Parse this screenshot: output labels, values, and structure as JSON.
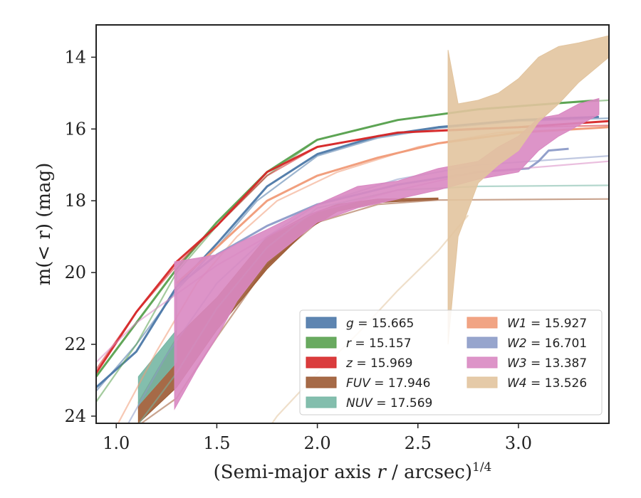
{
  "chart_data": {
    "type": "line",
    "title": "",
    "xlabel_main": "(Semi-major axis ",
    "xlabel_var": "r",
    "xlabel_unit": " / arcsec)",
    "xlabel_sup": "1/4",
    "ylabel_main": "m(< r) (mag)",
    "xlim": [
      0.9,
      3.45
    ],
    "ylim": [
      24.2,
      13.1
    ],
    "xticks": [
      "1.0",
      "1.5",
      "2.0",
      "2.5",
      "3.0"
    ],
    "yticks": [
      "14",
      "16",
      "18",
      "20",
      "22",
      "24"
    ],
    "grid": false,
    "legend_position": "lower-right",
    "series": [
      {
        "key": "g",
        "name": "g = 15.665",
        "color": "#4c78a8",
        "kind": "line",
        "model": [
          [
            0.9,
            23.3
          ],
          [
            1.1,
            22.0
          ],
          [
            1.3,
            20.5
          ],
          [
            1.5,
            19.3
          ],
          [
            1.7,
            18.0
          ],
          [
            2.0,
            16.75
          ],
          [
            2.3,
            16.25
          ],
          [
            2.6,
            15.98
          ],
          [
            3.0,
            15.78
          ],
          [
            3.45,
            15.7
          ]
        ],
        "data": [
          [
            0.9,
            23.2
          ],
          [
            1.1,
            22.2
          ],
          [
            1.3,
            20.4
          ],
          [
            1.5,
            19.2
          ],
          [
            1.75,
            17.6
          ],
          [
            2.0,
            16.7
          ],
          [
            2.3,
            16.2
          ],
          [
            2.6,
            15.95
          ],
          [
            3.0,
            15.75
          ],
          [
            3.4,
            15.66
          ]
        ]
      },
      {
        "key": "r",
        "name": "r = 15.157",
        "color": "#59a14f",
        "kind": "line",
        "model": [
          [
            0.9,
            23.6
          ],
          [
            1.1,
            22.0
          ],
          [
            1.3,
            20.0
          ],
          [
            1.5,
            18.7
          ],
          [
            1.75,
            17.3
          ],
          [
            2.0,
            16.3
          ],
          [
            2.4,
            15.75
          ],
          [
            2.8,
            15.45
          ],
          [
            3.2,
            15.28
          ],
          [
            3.45,
            15.2
          ]
        ],
        "data": [
          [
            0.9,
            22.9
          ],
          [
            1.1,
            21.4
          ],
          [
            1.3,
            19.9
          ],
          [
            1.5,
            18.6
          ],
          [
            1.75,
            17.2
          ],
          [
            2.0,
            16.3
          ],
          [
            2.4,
            15.75
          ],
          [
            2.8,
            15.45
          ],
          [
            3.2,
            15.28
          ],
          [
            3.4,
            15.2
          ]
        ]
      },
      {
        "key": "z",
        "name": "z = 15.969",
        "color": "#d62728",
        "kind": "line",
        "model": [
          [
            0.9,
            22.7
          ],
          [
            1.1,
            21.1
          ],
          [
            1.3,
            19.8
          ],
          [
            1.5,
            18.7
          ],
          [
            1.75,
            17.3
          ],
          [
            2.0,
            16.5
          ],
          [
            2.4,
            16.1
          ],
          [
            2.8,
            15.98
          ],
          [
            3.45,
            15.9
          ]
        ],
        "data": [
          [
            0.9,
            22.8
          ],
          [
            1.1,
            21.1
          ],
          [
            1.3,
            19.7
          ],
          [
            1.5,
            18.7
          ],
          [
            1.75,
            17.2
          ],
          [
            2.0,
            16.5
          ],
          [
            2.4,
            16.1
          ],
          [
            2.8,
            16.0
          ],
          [
            3.0,
            15.95
          ],
          [
            3.45,
            15.78
          ]
        ]
      },
      {
        "key": "fuv",
        "name": "FUV = 17.946",
        "color": "#9c5a33",
        "kind": "band",
        "model": [
          [
            1.1,
            24.3
          ],
          [
            1.3,
            23.5
          ],
          [
            1.5,
            21.8
          ],
          [
            1.75,
            19.8
          ],
          [
            2.0,
            18.6
          ],
          [
            2.3,
            18.1
          ],
          [
            2.6,
            17.98
          ],
          [
            3.45,
            17.95
          ]
        ],
        "band": [
          [
            1.11,
            24.2,
            23.6
          ],
          [
            1.3,
            23.2,
            21.8
          ],
          [
            1.5,
            21.6,
            20.7
          ],
          [
            1.75,
            19.9,
            19.0
          ],
          [
            1.95,
            18.8,
            18.4
          ],
          [
            2.1,
            18.3,
            18.1
          ],
          [
            2.3,
            18.05,
            17.95
          ],
          [
            2.6,
            17.97,
            17.92
          ]
        ]
      },
      {
        "key": "nuv",
        "name": "NUV = 17.569",
        "color": "#76b7a4",
        "kind": "band",
        "model": [
          [
            1.1,
            24.3
          ],
          [
            1.3,
            22.8
          ],
          [
            1.5,
            21.0
          ],
          [
            1.75,
            19.3
          ],
          [
            2.0,
            18.2
          ],
          [
            2.4,
            17.7
          ],
          [
            2.8,
            17.6
          ],
          [
            3.45,
            17.57
          ]
        ],
        "band": [
          [
            1.11,
            23.7,
            22.9
          ],
          [
            1.3,
            22.5,
            21.6
          ],
          [
            1.3,
            20.6,
            20.0
          ]
        ]
      },
      {
        "key": "w1",
        "name": "W1 = 15.927",
        "color": "#f09a77",
        "kind": "line",
        "model": [
          [
            1.0,
            24.3
          ],
          [
            1.2,
            22.2
          ],
          [
            1.4,
            20.3
          ],
          [
            1.6,
            19.0
          ],
          [
            1.8,
            18.0
          ],
          [
            2.1,
            17.2
          ],
          [
            2.5,
            16.5
          ],
          [
            2.9,
            16.1
          ],
          [
            3.45,
            15.95
          ]
        ],
        "data": [
          [
            1.3,
            20.3
          ],
          [
            1.5,
            19.3
          ],
          [
            1.75,
            18.0
          ],
          [
            2.0,
            17.3
          ],
          [
            2.3,
            16.8
          ],
          [
            2.6,
            16.4
          ],
          [
            3.0,
            16.1
          ],
          [
            3.45,
            15.95
          ]
        ]
      },
      {
        "key": "w2",
        "name": "W2 = 16.701",
        "color": "#8c9bc8",
        "kind": "line",
        "model": [
          [
            1.05,
            24.3
          ],
          [
            1.25,
            22.3
          ],
          [
            1.5,
            20.3
          ],
          [
            1.75,
            19.0
          ],
          [
            2.0,
            18.1
          ],
          [
            2.4,
            17.4
          ],
          [
            2.8,
            17.0
          ],
          [
            3.45,
            16.75
          ]
        ],
        "data": [
          [
            1.3,
            20.4
          ],
          [
            1.5,
            19.5
          ],
          [
            1.75,
            18.7
          ],
          [
            2.0,
            18.1
          ],
          [
            2.4,
            17.55
          ],
          [
            2.8,
            17.2
          ],
          [
            3.05,
            17.1
          ],
          [
            3.1,
            16.9
          ],
          [
            3.15,
            16.6
          ],
          [
            3.25,
            16.55
          ]
        ]
      },
      {
        "key": "w3",
        "name": "W3 = 13.387",
        "color": "#d988c2",
        "kind": "band",
        "model": [
          [
            0.9,
            22.5
          ],
          [
            1.1,
            21.4
          ],
          [
            1.3,
            20.6
          ],
          [
            1.5,
            19.8
          ],
          [
            1.75,
            19.0
          ],
          [
            2.0,
            18.3
          ],
          [
            2.4,
            17.7
          ],
          [
            2.8,
            17.2
          ],
          [
            3.45,
            16.9
          ]
        ],
        "band": [
          [
            1.29,
            23.8,
            19.7
          ],
          [
            1.4,
            22.7,
            19.6
          ],
          [
            1.5,
            21.8,
            19.5
          ],
          [
            1.6,
            20.8,
            19.2
          ],
          [
            1.75,
            19.7,
            18.8
          ],
          [
            2.0,
            18.6,
            18.1
          ],
          [
            2.2,
            18.2,
            17.6
          ],
          [
            2.4,
            17.95,
            17.45
          ],
          [
            2.6,
            17.7,
            17.1
          ],
          [
            2.8,
            17.4,
            16.9
          ],
          [
            2.9,
            17.3,
            16.5
          ],
          [
            3.0,
            17.2,
            16.2
          ],
          [
            3.1,
            16.6,
            15.7
          ],
          [
            3.2,
            16.2,
            15.6
          ],
          [
            3.3,
            15.9,
            15.3
          ],
          [
            3.4,
            15.6,
            15.15
          ]
        ]
      },
      {
        "key": "w4",
        "name": "W4 = 13.526",
        "color": "#e2c49e",
        "kind": "band",
        "model": [
          [
            1.55,
            26.0
          ],
          [
            1.8,
            24.0
          ],
          [
            2.0,
            22.8
          ],
          [
            2.2,
            21.7
          ],
          [
            2.4,
            20.5
          ],
          [
            2.6,
            19.4
          ],
          [
            2.75,
            18.4
          ]
        ],
        "band": [
          [
            2.65,
            22.0,
            13.8
          ],
          [
            2.7,
            19.0,
            15.3
          ],
          [
            2.8,
            17.5,
            15.2
          ],
          [
            2.9,
            17.0,
            15.0
          ],
          [
            3.0,
            16.6,
            14.6
          ],
          [
            3.1,
            15.8,
            14.0
          ],
          [
            3.2,
            15.3,
            13.7
          ],
          [
            3.3,
            14.7,
            13.6
          ],
          [
            3.45,
            14.0,
            13.4
          ]
        ]
      }
    ]
  }
}
